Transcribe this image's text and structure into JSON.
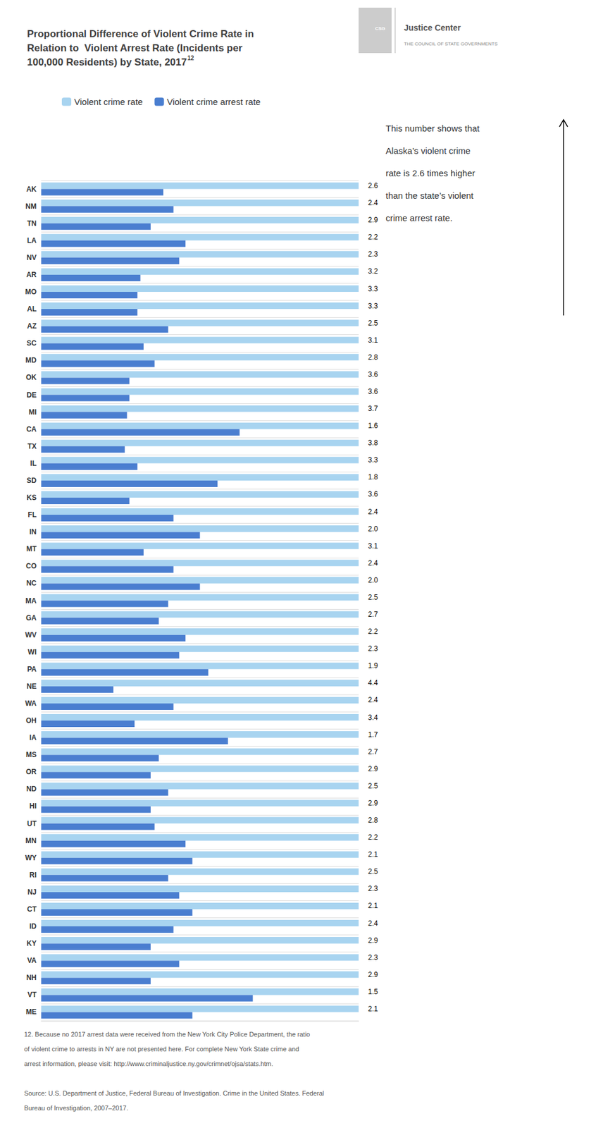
{
  "chart_data": {
    "type": "bar",
    "orientation": "horizontal",
    "title": "Proportional Difference of Violent Crime Rate in\nRelation to  Violent Arrest Rate (Incidents per\n100,000 Residents) by State, 2017",
    "title_superscript": "12",
    "categories": [
      "AK",
      "NM",
      "TN",
      "LA",
      "NV",
      "AR",
      "MO",
      "AL",
      "AZ",
      "SC",
      "MD",
      "OK",
      "DE",
      "MI",
      "CA",
      "TX",
      "IL",
      "SD",
      "KS",
      "FL",
      "IN",
      "MT",
      "CO",
      "NC",
      "MA",
      "GA",
      "WV",
      "WI",
      "PA",
      "NE",
      "WA",
      "OH",
      "IA",
      "MS",
      "OR",
      "ND",
      "HI",
      "UT",
      "MN",
      "WY",
      "RI",
      "NJ",
      "CT",
      "ID",
      "KY",
      "VA",
      "NH",
      "VT",
      "ME"
    ],
    "series": [
      {
        "name": "Violent crime rate",
        "color": "#A8D4F0",
        "values": [
          1.0,
          1.0,
          1.0,
          1.0,
          1.0,
          1.0,
          1.0,
          1.0,
          1.0,
          1.0,
          1.0,
          1.0,
          1.0,
          1.0,
          1.0,
          1.0,
          1.0,
          1.0,
          1.0,
          1.0,
          1.0,
          1.0,
          1.0,
          1.0,
          1.0,
          1.0,
          1.0,
          1.0,
          1.0,
          1.0,
          1.0,
          1.0,
          1.0,
          1.0,
          1.0,
          1.0,
          1.0,
          1.0,
          1.0,
          1.0,
          1.0,
          1.0,
          1.0,
          1.0,
          1.0,
          1.0,
          1.0,
          1.0,
          1.0
        ]
      },
      {
        "name": "Violent crime arrest rate",
        "color": "#4A7ED0",
        "values": [
          0.3846153846153846,
          0.4166666666666667,
          0.3448275862068966,
          0.45454545454545453,
          0.4347826086956522,
          0.3125,
          0.30303030303030304,
          0.30303030303030304,
          0.4,
          0.3225806451612903,
          0.35714285714285715,
          0.2777777777777778,
          0.2777777777777778,
          0.2702702702702703,
          0.625,
          0.2631578947368421,
          0.30303030303030304,
          0.5555555555555556,
          0.2777777777777778,
          0.4166666666666667,
          0.5,
          0.3225806451612903,
          0.4166666666666667,
          0.5,
          0.4,
          0.37037037037037035,
          0.45454545454545453,
          0.4347826086956522,
          0.5263157894736842,
          0.22727272727272727,
          0.4166666666666667,
          0.29411764705882354,
          0.5882352941176471,
          0.37037037037037035,
          0.3448275862068966,
          0.4,
          0.3448275862068966,
          0.35714285714285715,
          0.45454545454545453,
          0.47619047619047616,
          0.4,
          0.4347826086956522,
          0.47619047619047616,
          0.4166666666666667,
          0.3448275862068966,
          0.4347826086956522,
          0.3448275862068966,
          0.6666666666666666,
          0.47619047619047616
        ]
      }
    ],
    "ratios": [
      2.6,
      2.4,
      2.9,
      2.2,
      2.3,
      3.2,
      3.3,
      3.3,
      2.5,
      3.1,
      2.8,
      3.6,
      3.6,
      3.7,
      1.6,
      3.8,
      3.3,
      1.8,
      3.6,
      2.4,
      2.0,
      3.1,
      2.4,
      2.0,
      2.5,
      2.7,
      2.2,
      2.3,
      1.9,
      4.4,
      2.4,
      3.4,
      1.7,
      2.7,
      2.9,
      2.5,
      2.9,
      2.8,
      2.2,
      2.1,
      2.5,
      2.3,
      2.1,
      2.4,
      2.9,
      2.3,
      2.9,
      1.5,
      2.1
    ],
    "xlim": [
      0,
      1
    ],
    "tick_labels": "y",
    "grid": true,
    "legend": "upper left",
    "annotations": [
      "This number shows that",
      "Alaska’s violent crime",
      "rate is 2.6 times higher",
      "than the state’s violent",
      "crime arrest rate."
    ],
    "logo": [
      "CSG",
      "Justice Center",
      "THE COUNCIL OF STATE GOVERNMENTS"
    ],
    "footnote": [
      "12. Because no 2017 arrest data were received from the New York City Police Department, the ratio",
      "of violent crime to arrests in NY are not presented here. For complete New York State crime and",
      "arrest information, please visit: http://www.criminaljustice.ny.gov/crimnet/ojsa/stats.htm."
    ],
    "source": [
      "Source: U.S. Department of Justice, Federal Bureau of Investigation. Crime in the United States. Federal",
      "Bureau of Investigation, 2007–2017."
    ]
  }
}
